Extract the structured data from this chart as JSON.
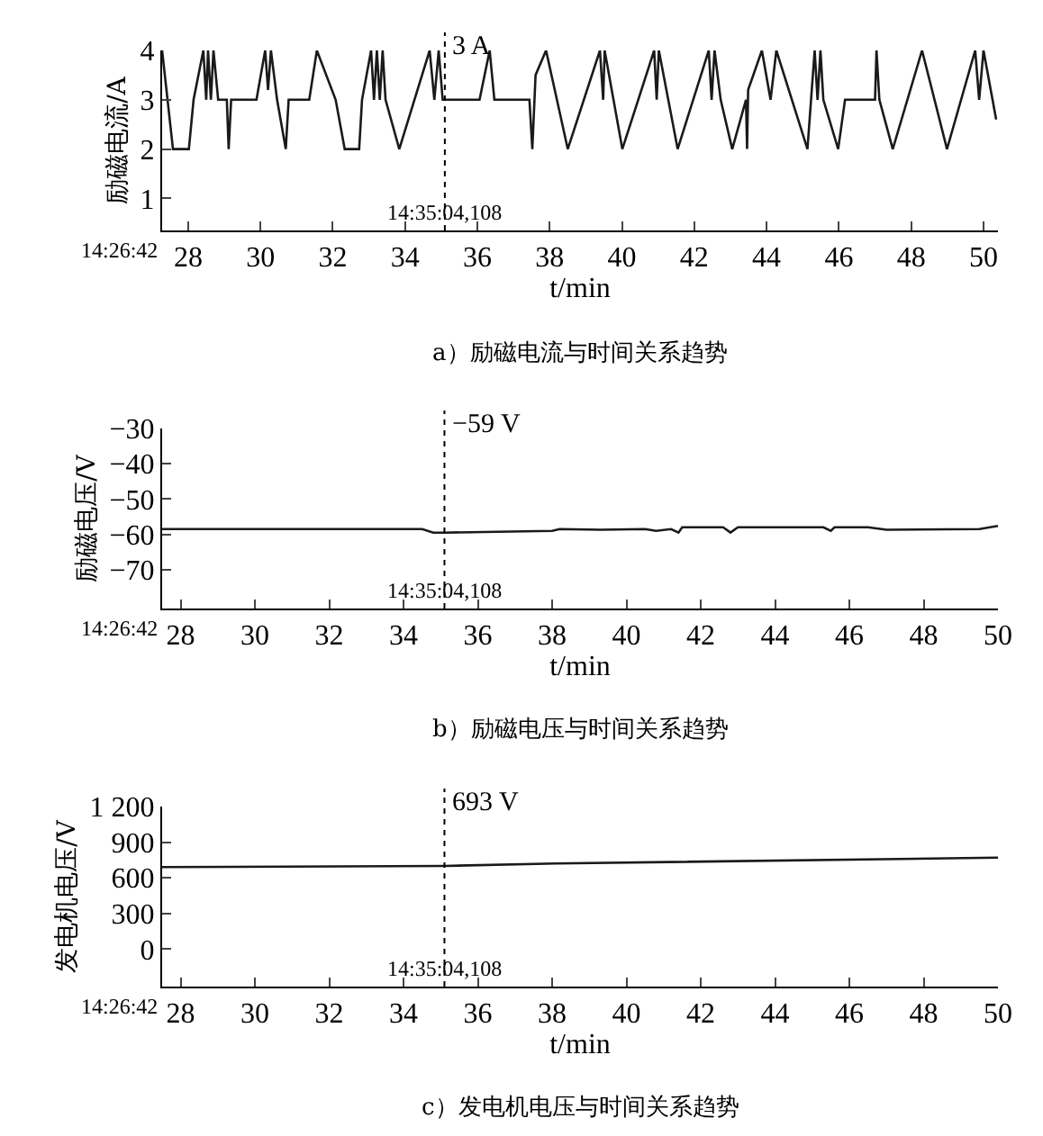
{
  "chart_data": [
    {
      "type": "line",
      "title": "a）励磁电流与时间关系趋势",
      "xlabel": "t/min",
      "ylabel": "励磁电流/A",
      "x": [
        27.28,
        27.58,
        28.02,
        28.15,
        28.42,
        28.5,
        28.55,
        28.63,
        28.7,
        28.83,
        29.07,
        29.12,
        29.19,
        29.89,
        30.13,
        30.21,
        30.29,
        30.46,
        30.7,
        30.78,
        31.35,
        31.56,
        32.08,
        32.33,
        32.73,
        32.81,
        33.06,
        33.14,
        33.22,
        33.3,
        33.38,
        33.46,
        33.84,
        34.68,
        34.81,
        34.93,
        35.04,
        36.06,
        36.34,
        36.47,
        37.44,
        37.52,
        37.61,
        37.9,
        38.5,
        39.39,
        39.48,
        39.52,
        40.01,
        40.89,
        40.96,
        41.02,
        41.54,
        42.4,
        42.48,
        42.56,
        42.73,
        43.05,
        43.43,
        43.46,
        43.49,
        43.87,
        44.11,
        44.27,
        45.13,
        45.33,
        45.41,
        45.49,
        45.57,
        45.98,
        46.17,
        47.0,
        47.04,
        47.12,
        47.49,
        48.3,
        48.99,
        49.77,
        49.88,
        50.0,
        50.35
      ],
      "series": [
        {
          "color": "#1a1a1a",
          "values": [
            4,
            2,
            2,
            3,
            4,
            3,
            4,
            3,
            4,
            3,
            3,
            2,
            3,
            3,
            4,
            3.2,
            4,
            3,
            2,
            3,
            3,
            4,
            3,
            2,
            2,
            3,
            4,
            3,
            4,
            3,
            4,
            3,
            2,
            4,
            3,
            4,
            3,
            3,
            4,
            3,
            3,
            2,
            3.5,
            4,
            2,
            4,
            3,
            4,
            2,
            4,
            3,
            4,
            2,
            4,
            3,
            4,
            3,
            2,
            3,
            2,
            3.2,
            4,
            3,
            4,
            2,
            4,
            3,
            4,
            3,
            2,
            3,
            3,
            4,
            3,
            2,
            4,
            2,
            4,
            3,
            4,
            2.6
          ]
        }
      ],
      "xlim": [
        27.28,
        50.4
      ],
      "xticks": [
        28,
        30,
        32,
        34,
        36,
        38,
        40,
        42,
        44,
        46,
        48,
        50
      ],
      "ylim": [
        0.35,
        4
      ],
      "yticks": [
        1,
        2,
        3,
        4
      ],
      "ref_lines": [
        {
          "axis": "x",
          "value": 35.1,
          "label": "14:35:04,108",
          "line_style": "dotted"
        }
      ],
      "annotations": [
        "3 A",
        "14:26:42"
      ]
    },
    {
      "type": "line",
      "title": "b）励磁电压与时间关系趋势",
      "xlabel": "t/min",
      "ylabel": "励磁电压/V",
      "x": [
        27.5,
        34.5,
        34.8,
        35.1,
        38.0,
        38.2,
        39.3,
        40.5,
        40.8,
        41.2,
        41.4,
        41.5,
        42.6,
        42.8,
        43.0,
        45.3,
        45.5,
        45.6,
        46.5,
        47.0,
        49.5,
        50.0
      ],
      "series": [
        {
          "color": "#1a1a1a",
          "values": [
            -58.5,
            -58.5,
            -59.5,
            -59.5,
            -59,
            -58.5,
            -58.7,
            -58.5,
            -59,
            -58.5,
            -59.5,
            -58,
            -58,
            -59.5,
            -58,
            -58,
            -59,
            -58,
            -58,
            -58.7,
            -58.5,
            -57.6
          ]
        }
      ],
      "xlim": [
        27.5,
        50
      ],
      "xticks": [
        28,
        30,
        32,
        34,
        36,
        38,
        40,
        42,
        44,
        46,
        48,
        50
      ],
      "ylim": [
        -81,
        -30
      ],
      "yticks": [
        {
          "value": -30,
          "label": "−30"
        },
        {
          "value": -40,
          "label": "−40"
        },
        {
          "value": -50,
          "label": "−50"
        },
        {
          "value": -60,
          "label": "−60"
        },
        {
          "value": -70,
          "label": "−70"
        }
      ],
      "ref_lines": [
        {
          "axis": "x",
          "value": 35.1,
          "label": "14:35:04,108",
          "line_style": "dotted"
        }
      ],
      "annotations": [
        "−59 V",
        "14:26:42"
      ]
    },
    {
      "type": "line",
      "title": "c）发电机电压与时间关系趋势",
      "xlabel": "t/min",
      "ylabel": "发电机电压/V",
      "x": [
        27.5,
        35.1,
        38.1,
        50.0
      ],
      "series": [
        {
          "color": "#1a1a1a",
          "values": [
            690,
            700,
            720,
            770
          ]
        }
      ],
      "xlim": [
        27.5,
        50
      ],
      "xticks": [
        28,
        30,
        32,
        34,
        36,
        38,
        40,
        42,
        44,
        46,
        48,
        50
      ],
      "ylim": [
        -316,
        1200
      ],
      "yticks": [
        0,
        300,
        600,
        900,
        {
          "value": 1200,
          "label": "1 200"
        }
      ],
      "ref_lines": [
        {
          "axis": "x",
          "value": 35.1,
          "label": "14:35:04,108",
          "line_style": "dotted"
        }
      ],
      "annotations": [
        "693 V",
        "14:26:42"
      ]
    }
  ]
}
